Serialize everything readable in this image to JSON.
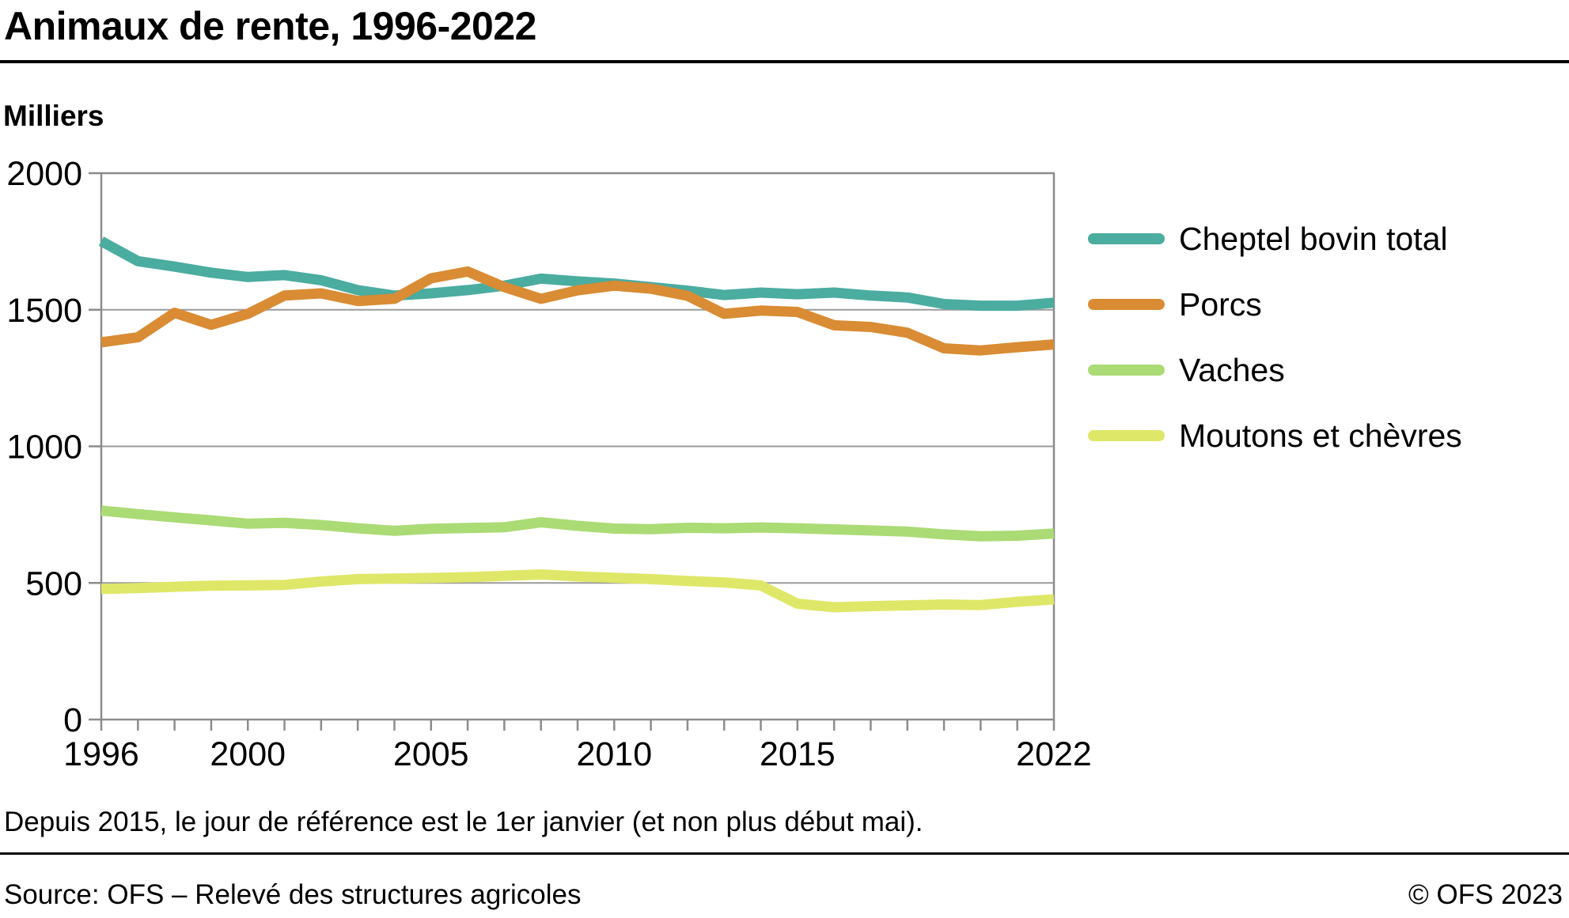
{
  "header": {
    "title": "Animaux de rente, 1996-2022",
    "unit_label": "Milliers"
  },
  "footer": {
    "note": "Depuis 2015, le jour de référence est le 1er janvier (et non plus début mai).",
    "source": "Source: OFS – Relevé des structures agricoles",
    "copyright": "© OFS 2023"
  },
  "colors": {
    "cattle": "#4BACA0",
    "pigs": "#D98C34",
    "cows": "#ABDB75",
    "sheep_goats": "#DFE768",
    "grid": "#9B9B9B",
    "axis_border": "#8C8C8C",
    "tick": "#8C8C8C",
    "text": "#000000"
  },
  "chart_data": {
    "type": "line",
    "title": "Animaux de rente, 1996-2022",
    "ylabel": "Milliers",
    "xlabel": "",
    "ylim": [
      0,
      2000
    ],
    "yticks": [
      0,
      500,
      1000,
      1500,
      2000
    ],
    "gridlines_y": [
      500,
      1000,
      1500
    ],
    "grid": "horizontal",
    "legend_position": "right",
    "x": [
      1996,
      1997,
      1998,
      1999,
      2000,
      2001,
      2002,
      2003,
      2004,
      2005,
      2006,
      2007,
      2008,
      2009,
      2010,
      2011,
      2012,
      2013,
      2014,
      2015,
      2016,
      2017,
      2018,
      2019,
      2020,
      2021,
      2022
    ],
    "xtick_labels": [
      1996,
      2000,
      2005,
      2010,
      2015,
      2022
    ],
    "series": [
      {
        "name": "Cheptel bovin total",
        "color_key": "cattle",
        "values": [
          1751,
          1678,
          1658,
          1636,
          1620,
          1627,
          1608,
          1572,
          1552,
          1560,
          1572,
          1588,
          1614,
          1604,
          1596,
          1583,
          1570,
          1554,
          1563,
          1557,
          1563,
          1552,
          1545,
          1521,
          1515,
          1515,
          1526
        ]
      },
      {
        "name": "Porcs",
        "color_key": "pigs",
        "values": [
          1381,
          1399,
          1489,
          1445,
          1485,
          1552,
          1560,
          1532,
          1540,
          1615,
          1640,
          1583,
          1540,
          1571,
          1588,
          1577,
          1551,
          1485,
          1497,
          1492,
          1443,
          1437,
          1416,
          1359,
          1351,
          1363,
          1373
        ]
      },
      {
        "name": "Vaches",
        "color_key": "cows",
        "values": [
          765,
          752,
          740,
          729,
          717,
          720,
          712,
          700,
          691,
          698,
          701,
          704,
          722,
          709,
          699,
          697,
          702,
          700,
          703,
          700,
          696,
          692,
          688,
          678,
          671,
          673,
          681
        ]
      },
      {
        "name": "Moutons et chèvres",
        "color_key": "sheep_goats",
        "values": [
          478,
          481,
          486,
          490,
          491,
          493,
          505,
          514,
          516,
          518,
          521,
          526,
          531,
          524,
          519,
          514,
          507,
          502,
          491,
          424,
          411,
          415,
          418,
          421,
          419,
          431,
          440
        ]
      }
    ]
  }
}
